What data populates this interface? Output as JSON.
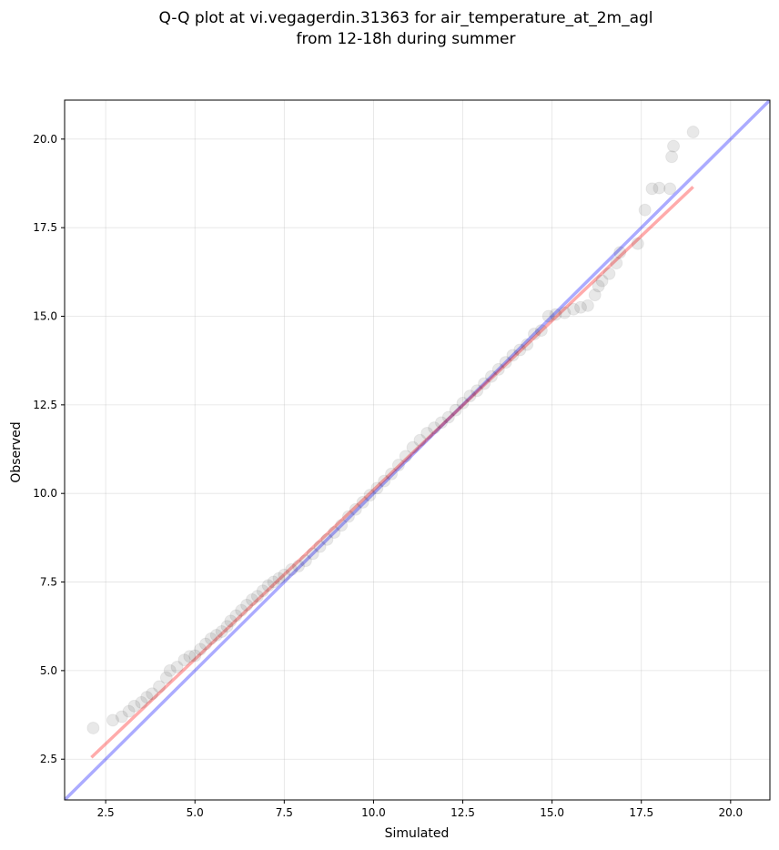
{
  "chart_data": {
    "type": "scatter",
    "title_line1": "Q-Q plot at vi.vegagerdin.31363 for air_temperature_at_2m_agl",
    "title_line2": "from 12-18h during summer",
    "xlabel": "Simulated",
    "ylabel": "Observed",
    "xlim": [
      1.35,
      21.1
    ],
    "ylim": [
      1.35,
      21.1
    ],
    "x_ticks": [
      "2.5",
      "5.0",
      "7.5",
      "10.0",
      "12.5",
      "15.0",
      "17.5",
      "20.0"
    ],
    "y_ticks": [
      "2.5",
      "5.0",
      "7.5",
      "10.0",
      "12.5",
      "15.0",
      "17.5",
      "20.0"
    ],
    "grid": true,
    "colors": {
      "points": "#000000",
      "identity_line": "#0000ff",
      "fit_line": "#ff0000"
    },
    "identity_line": {
      "x": [
        1.35,
        21.1
      ],
      "y": [
        1.35,
        21.1
      ]
    },
    "fit_line": {
      "x": [
        2.1,
        18.95
      ],
      "y": [
        2.55,
        18.65
      ]
    },
    "points": [
      [
        2.15,
        3.38
      ],
      [
        2.7,
        3.6
      ],
      [
        2.95,
        3.7
      ],
      [
        3.15,
        3.85
      ],
      [
        3.3,
        4.0
      ],
      [
        3.5,
        4.1
      ],
      [
        3.65,
        4.25
      ],
      [
        3.8,
        4.35
      ],
      [
        4.0,
        4.55
      ],
      [
        4.2,
        4.8
      ],
      [
        4.3,
        5.0
      ],
      [
        4.5,
        5.1
      ],
      [
        4.7,
        5.3
      ],
      [
        4.85,
        5.4
      ],
      [
        5.0,
        5.42
      ],
      [
        5.15,
        5.6
      ],
      [
        5.3,
        5.75
      ],
      [
        5.45,
        5.9
      ],
      [
        5.6,
        6.0
      ],
      [
        5.75,
        6.1
      ],
      [
        5.9,
        6.25
      ],
      [
        6.0,
        6.4
      ],
      [
        6.15,
        6.55
      ],
      [
        6.3,
        6.7
      ],
      [
        6.45,
        6.85
      ],
      [
        6.6,
        7.0
      ],
      [
        6.75,
        7.1
      ],
      [
        6.9,
        7.25
      ],
      [
        7.05,
        7.4
      ],
      [
        7.2,
        7.5
      ],
      [
        7.35,
        7.6
      ],
      [
        7.5,
        7.7
      ],
      [
        7.7,
        7.85
      ],
      [
        7.9,
        7.95
      ],
      [
        8.1,
        8.1
      ],
      [
        8.3,
        8.3
      ],
      [
        8.5,
        8.5
      ],
      [
        8.7,
        8.7
      ],
      [
        8.9,
        8.9
      ],
      [
        9.1,
        9.1
      ],
      [
        9.3,
        9.35
      ],
      [
        9.5,
        9.55
      ],
      [
        9.7,
        9.75
      ],
      [
        9.9,
        9.95
      ],
      [
        10.1,
        10.15
      ],
      [
        10.3,
        10.35
      ],
      [
        10.5,
        10.55
      ],
      [
        10.7,
        10.8
      ],
      [
        10.9,
        11.05
      ],
      [
        11.1,
        11.3
      ],
      [
        11.3,
        11.5
      ],
      [
        11.5,
        11.7
      ],
      [
        11.7,
        11.85
      ],
      [
        11.9,
        12.0
      ],
      [
        12.1,
        12.15
      ],
      [
        12.3,
        12.35
      ],
      [
        12.5,
        12.55
      ],
      [
        12.7,
        12.75
      ],
      [
        12.9,
        12.9
      ],
      [
        13.1,
        13.1
      ],
      [
        13.3,
        13.3
      ],
      [
        13.5,
        13.5
      ],
      [
        13.7,
        13.7
      ],
      [
        13.9,
        13.9
      ],
      [
        14.1,
        14.05
      ],
      [
        14.3,
        14.2
      ],
      [
        14.5,
        14.5
      ],
      [
        14.7,
        14.6
      ],
      [
        14.9,
        15.0
      ],
      [
        15.1,
        15.05
      ],
      [
        15.35,
        15.1
      ],
      [
        15.6,
        15.2
      ],
      [
        15.8,
        15.25
      ],
      [
        16.0,
        15.3
      ],
      [
        16.2,
        15.6
      ],
      [
        16.3,
        15.85
      ],
      [
        16.4,
        16.0
      ],
      [
        16.6,
        16.2
      ],
      [
        16.8,
        16.5
      ],
      [
        16.9,
        16.8
      ],
      [
        17.4,
        17.05
      ],
      [
        17.6,
        18.0
      ],
      [
        17.8,
        18.6
      ],
      [
        18.0,
        18.62
      ],
      [
        18.3,
        18.6
      ],
      [
        18.35,
        19.5
      ],
      [
        18.4,
        19.8
      ],
      [
        18.95,
        20.2
      ]
    ]
  }
}
